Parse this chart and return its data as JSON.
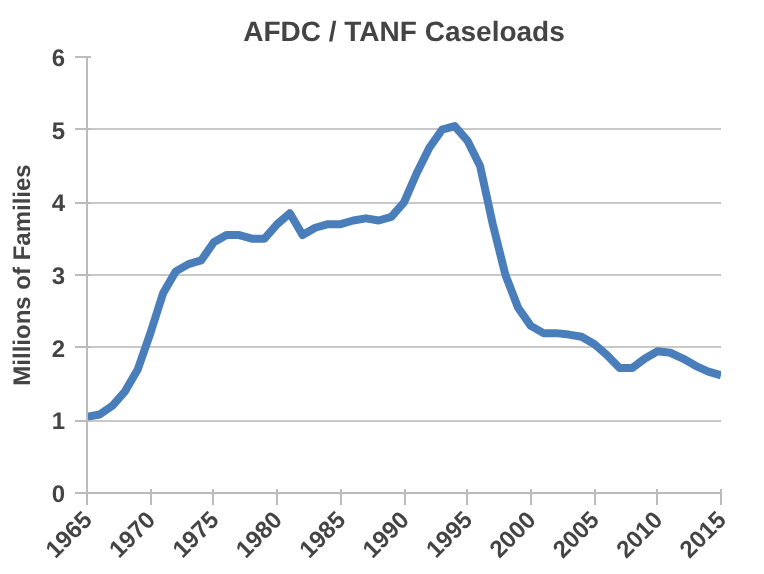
{
  "chart_data": {
    "type": "line",
    "title": "AFDC / TANF Caseloads",
    "ylabel": "Millions of Families",
    "x": [
      1965,
      1966,
      1967,
      1968,
      1969,
      1970,
      1971,
      1972,
      1973,
      1974,
      1975,
      1976,
      1977,
      1978,
      1979,
      1980,
      1981,
      1982,
      1983,
      1984,
      1985,
      1986,
      1987,
      1988,
      1989,
      1990,
      1991,
      1992,
      1993,
      1994,
      1995,
      1996,
      1997,
      1998,
      1999,
      2000,
      2001,
      2002,
      2003,
      2004,
      2005,
      2006,
      2007,
      2008,
      2009,
      2010,
      2011,
      2012,
      2013,
      2014,
      2015
    ],
    "series": [
      {
        "color": "#4a7ebb",
        "values": [
          1.05,
          1.08,
          1.2,
          1.4,
          1.7,
          2.2,
          2.75,
          3.05,
          3.15,
          3.2,
          3.45,
          3.55,
          3.55,
          3.5,
          3.5,
          3.7,
          3.85,
          3.55,
          3.65,
          3.7,
          3.7,
          3.75,
          3.78,
          3.75,
          3.8,
          4.0,
          4.4,
          4.75,
          5.0,
          5.05,
          4.85,
          4.5,
          3.7,
          3.0,
          2.55,
          2.3,
          2.2,
          2.2,
          2.18,
          2.15,
          2.05,
          1.9,
          1.72,
          1.72,
          1.85,
          1.95,
          1.93,
          1.85,
          1.75,
          1.67,
          1.62
        ]
      }
    ],
    "xlim": [
      1965,
      2015
    ],
    "xticks": [
      1965,
      1970,
      1975,
      1980,
      1985,
      1990,
      1995,
      2000,
      2005,
      2010,
      2015
    ],
    "ylim": [
      0,
      6
    ],
    "yticks": [
      0,
      1,
      2,
      3,
      4,
      5,
      6
    ],
    "grid": "y",
    "marker": "none",
    "line_style": "solid"
  }
}
